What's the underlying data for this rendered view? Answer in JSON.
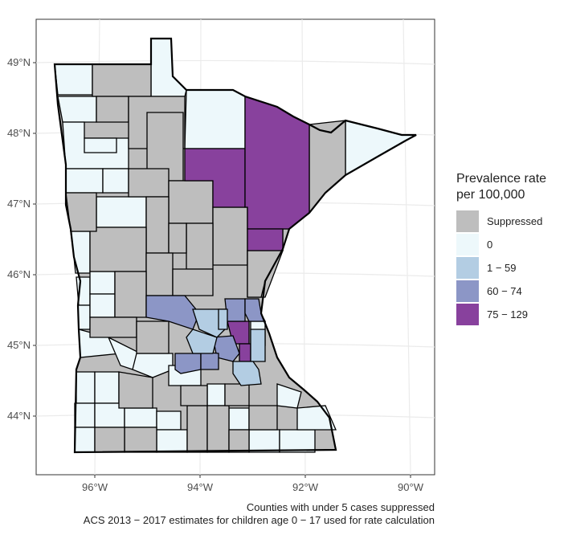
{
  "chart_data": {
    "type": "choropleth",
    "region": "Minnesota counties",
    "x_ticks": [
      "96°W",
      "94°W",
      "92°W",
      "90°W"
    ],
    "y_ticks": [
      "49°N",
      "48°N",
      "47°N",
      "46°N",
      "45°N",
      "44°N"
    ],
    "legend": {
      "title_line1": "Prevalence rate",
      "title_line2": "per 100,000",
      "position": "right",
      "items": [
        {
          "label": "Suppressed",
          "color": "#bebebe"
        },
        {
          "label": "0",
          "color": "#edf8fb"
        },
        {
          "label": "1 − 59",
          "color": "#b3cde3"
        },
        {
          "label": "60 − 74",
          "color": "#8c96c6"
        },
        {
          "label": "75 − 129",
          "color": "#88419d"
        }
      ]
    },
    "caption_line1": "Counties with under 5 cases suppressed",
    "caption_line2": "ACS 2013 − 2017 estimates for children age 0 − 17 used for rate calculation"
  }
}
